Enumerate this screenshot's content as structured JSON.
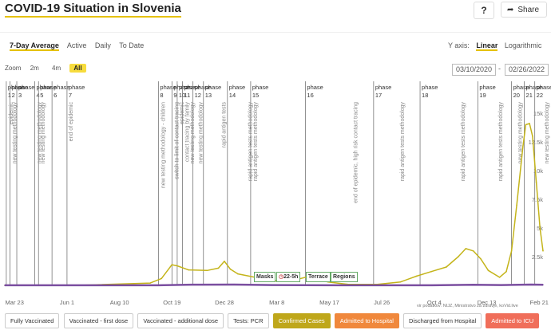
{
  "header": {
    "title": "COVID-19 Situation in Slovenia",
    "help_label": "?",
    "share_label": "Share"
  },
  "modes": [
    "7-Day Average",
    "Active",
    "Daily",
    "To Date"
  ],
  "yaxis": {
    "label": "Y axis:",
    "linear": "Linear",
    "log": "Logarithmic"
  },
  "zoom": {
    "label": "Zoom",
    "options": [
      "2m",
      "4m",
      "All"
    ],
    "selected": "All"
  },
  "date_range": {
    "from": "03/10/2020",
    "to": "02/26/2022"
  },
  "measures": [
    "Masks",
    "22-5h",
    "Terrace",
    "Regions"
  ],
  "source": "vir podatkov: NIJZ, Ministrstvo za zdravje, koVid.live",
  "legend": [
    "Fully Vaccinated",
    "Vaccinated - first dose",
    "Vaccinated - additional dose",
    "Tests: PCR",
    "Confirmed Cases",
    "Admitted to Hospital",
    "Discharged from Hospital",
    "Admitted to ICU"
  ],
  "colors": {
    "cases": "#c4b41a",
    "hospital": "#7b4fa0",
    "accent": "#f7dc3d"
  },
  "chart_data": {
    "type": "line",
    "x_ticks": [
      "Mar 23",
      "Jun 1",
      "Aug 10",
      "Oct 19",
      "Dec 28",
      "Mar 8",
      "May 17",
      "Jul 26",
      "Oct 4",
      "Dec 13",
      "Feb 21"
    ],
    "y_ticks": [
      "2.5k",
      "5k",
      "7.5k",
      "10k",
      "12.5k",
      "15k"
    ],
    "ylim": [
      0,
      15000
    ],
    "phases": [
      {
        "label": "phase 1",
        "date": "2020-03-12"
      },
      {
        "label": "phase 2",
        "date": "2020-03-17"
      },
      {
        "label": "phase 3",
        "date": "2020-03-26"
      },
      {
        "label": "phase 4",
        "date": "2020-04-19"
      },
      {
        "label": "phase 5",
        "date": "2020-04-24"
      },
      {
        "label": "phase 6",
        "date": "2020-05-12"
      },
      {
        "label": "phase 7",
        "date": "2020-06-01"
      },
      {
        "label": "phase 8",
        "date": "2020-10-01"
      },
      {
        "label": "phase 9",
        "date": "2020-10-19"
      },
      {
        "label": "phase 10",
        "date": "2020-10-26"
      },
      {
        "label": "phase 11",
        "date": "2020-11-02"
      },
      {
        "label": "phase 12",
        "date": "2020-11-16"
      },
      {
        "label": "phase 13",
        "date": "2020-11-30"
      },
      {
        "label": "phase 14",
        "date": "2021-01-01"
      },
      {
        "label": "phase 15",
        "date": "2021-02-01"
      },
      {
        "label": "phase 16",
        "date": "2021-04-15"
      },
      {
        "label": "phase 17",
        "date": "2021-07-15"
      },
      {
        "label": "phase 18",
        "date": "2021-09-15"
      },
      {
        "label": "phase 19",
        "date": "2021-12-01"
      },
      {
        "label": "phase 20",
        "date": "2022-01-15"
      },
      {
        "label": "phase 21",
        "date": "2022-02-01"
      },
      {
        "label": "phase 22",
        "date": "2022-02-15"
      }
    ],
    "annotations": [
      {
        "date": "2020-03-12",
        "text": "epidemic"
      },
      {
        "date": "2020-03-17",
        "text": "new testing methodology"
      },
      {
        "date": "2020-04-19",
        "text": "new testing methodology"
      },
      {
        "date": "2020-04-24",
        "text": "new testing methodology"
      },
      {
        "date": "2020-05-31",
        "text": "end of epidemic"
      },
      {
        "date": "2020-10-01",
        "text": "new testing methodology - children"
      },
      {
        "date": "2020-10-19",
        "text": "switch to limit of contact tracing"
      },
      {
        "date": "2020-10-26",
        "text": "epidemic"
      },
      {
        "date": "2020-11-02",
        "text": "contact tracing by family"
      },
      {
        "date": "2020-11-09",
        "text": "new testing methodology"
      },
      {
        "date": "2020-11-20",
        "text": "new testing methodology"
      },
      {
        "date": "2020-12-21",
        "text": "rapid antigen tests"
      },
      {
        "date": "2021-01-25",
        "text": "rapid antigen tests methodology"
      },
      {
        "date": "2021-02-01",
        "text": "rapid antigen tests methodology"
      },
      {
        "date": "2021-06-15",
        "text": "end of epidemic, high risk contact tracing"
      },
      {
        "date": "2021-08-16",
        "text": "rapid antigen tests methodology"
      },
      {
        "date": "2021-11-05",
        "text": "rapid antigen tests methodology"
      },
      {
        "date": "2021-12-25",
        "text": "rapid antigen tests methodology"
      },
      {
        "date": "2022-01-20",
        "text": "new testing methodology"
      },
      {
        "date": "2022-02-25",
        "text": "new testing methodology"
      }
    ],
    "series": [
      {
        "name": "Confirmed Cases",
        "dates": [
          "2020-03-10",
          "2020-06-15",
          "2020-09-20",
          "2020-10-05",
          "2020-10-19",
          "2020-10-26",
          "2020-11-10",
          "2020-12-05",
          "2020-12-20",
          "2020-12-28",
          "2021-01-05",
          "2021-01-15",
          "2021-02-15",
          "2021-03-05",
          "2021-03-25",
          "2021-04-15",
          "2021-05-15",
          "2021-06-10",
          "2021-07-20",
          "2021-08-20",
          "2021-09-10",
          "2021-09-30",
          "2021-10-20",
          "2021-11-05",
          "2021-11-15",
          "2021-11-25",
          "2021-12-05",
          "2021-12-15",
          "2021-12-30",
          "2022-01-08",
          "2022-01-15",
          "2022-01-22",
          "2022-01-30",
          "2022-02-03",
          "2022-02-08",
          "2022-02-12",
          "2022-02-17",
          "2022-02-22",
          "2022-02-26"
        ],
        "values": [
          0,
          0,
          200,
          600,
          1800,
          1700,
          1350,
          1300,
          1500,
          2100,
          1400,
          1000,
          600,
          400,
          350,
          700,
          300,
          100,
          80,
          300,
          800,
          1200,
          1600,
          2500,
          3200,
          3000,
          2300,
          1300,
          700,
          1200,
          3000,
          7000,
          12000,
          14000,
          14100,
          13000,
          9000,
          5000,
          3000
        ]
      },
      {
        "name": "Admitted to Hospital",
        "dates": [
          "2020-03-10",
          "2020-10-01",
          "2020-11-15",
          "2021-01-10",
          "2021-03-01",
          "2021-06-01",
          "2021-10-01",
          "2021-11-25",
          "2022-01-01",
          "2022-02-10",
          "2022-02-26"
        ],
        "values": [
          5,
          10,
          60,
          70,
          30,
          5,
          10,
          55,
          30,
          70,
          50
        ]
      }
    ]
  }
}
